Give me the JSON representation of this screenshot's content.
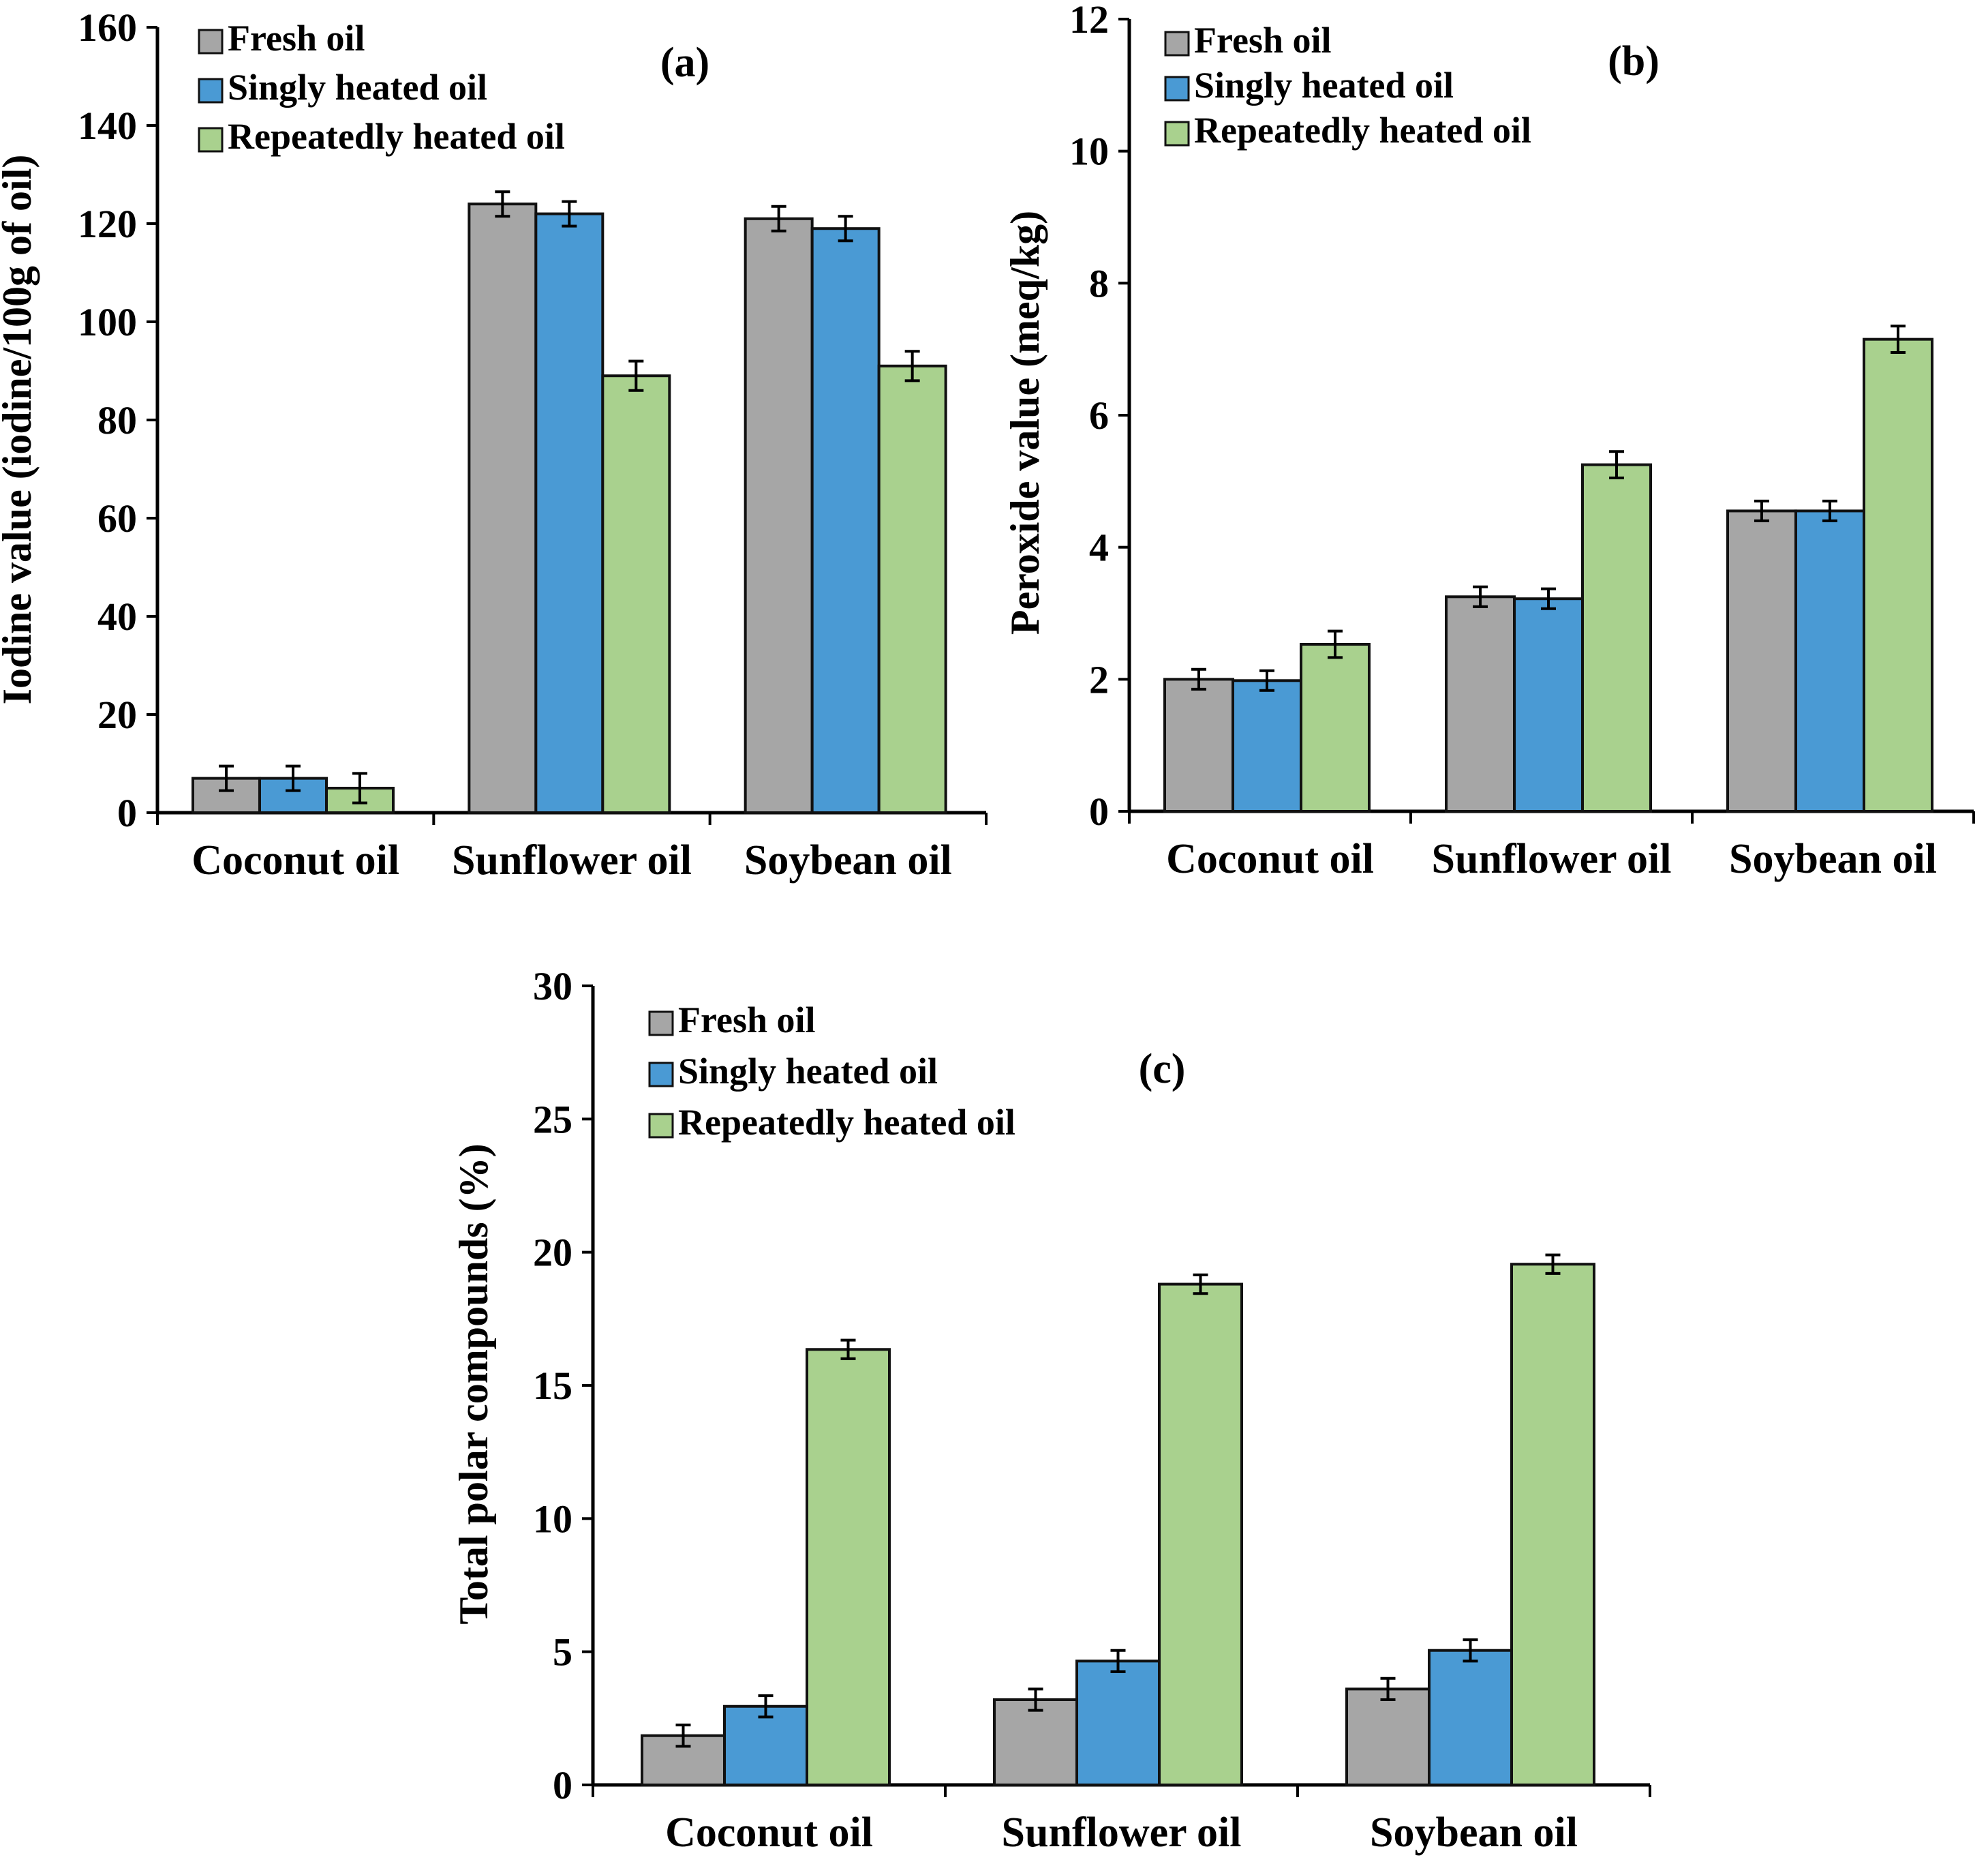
{
  "chart_data": [
    {
      "type": "bar",
      "panel_label": "(a)",
      "title": "",
      "xlabel": "",
      "ylabel": "Iodine value (iodine/100g of oil)",
      "ylim": [
        0,
        160
      ],
      "yticks": [
        0,
        20,
        40,
        60,
        80,
        100,
        120,
        140,
        160
      ],
      "grid": false,
      "legend_position": "top-left",
      "categories": [
        "Coconut oil",
        "Sunflower oil",
        "Soybean oil"
      ],
      "series": [
        {
          "name": "Fresh oil",
          "color": "#a6a6a6",
          "values": [
            7,
            124,
            121
          ],
          "errors": [
            2.5,
            2.5,
            2.5
          ]
        },
        {
          "name": "Singly heated oil",
          "color": "#4a9ad4",
          "values": [
            7,
            122,
            119
          ],
          "errors": [
            2.5,
            2.5,
            2.5
          ]
        },
        {
          "name": "Repeatedly heated oil",
          "color": "#a9d18e",
          "values": [
            5,
            89,
            91
          ],
          "errors": [
            3,
            3,
            3
          ]
        }
      ]
    },
    {
      "type": "bar",
      "panel_label": "(b)",
      "title": "",
      "xlabel": "",
      "ylabel": "Peroxide value (meq/kg)",
      "ylim": [
        0,
        12
      ],
      "yticks": [
        0,
        2,
        4,
        6,
        8,
        10,
        12
      ],
      "grid": false,
      "legend_position": "top-left",
      "categories": [
        "Coconut oil",
        "Sunflower oil",
        "Soybean oil"
      ],
      "series": [
        {
          "name": "Fresh oil",
          "color": "#a6a6a6",
          "values": [
            2.0,
            3.25,
            4.55
          ],
          "errors": [
            0.15,
            0.15,
            0.15
          ]
        },
        {
          "name": "Singly heated oil",
          "color": "#4a9ad4",
          "values": [
            1.98,
            3.22,
            4.55
          ],
          "errors": [
            0.15,
            0.15,
            0.15
          ]
        },
        {
          "name": "Repeatedly heated oil",
          "color": "#a9d18e",
          "values": [
            2.53,
            5.25,
            7.15
          ],
          "errors": [
            0.2,
            0.2,
            0.2
          ]
        }
      ]
    },
    {
      "type": "bar",
      "panel_label": "(c)",
      "title": "",
      "xlabel": "",
      "ylabel": "Total polar compounds (%)",
      "ylim": [
        0,
        30
      ],
      "yticks": [
        0,
        5,
        10,
        15,
        20,
        25,
        30
      ],
      "grid": false,
      "legend_position": "top-left",
      "categories": [
        "Coconut oil",
        "Sunflower oil",
        "Soybean oil"
      ],
      "series": [
        {
          "name": "Fresh oil",
          "color": "#a6a6a6",
          "values": [
            1.85,
            3.2,
            3.6
          ],
          "errors": [
            0.4,
            0.4,
            0.4
          ]
        },
        {
          "name": "Singly heated oil",
          "color": "#4a9ad4",
          "values": [
            2.95,
            4.65,
            5.05
          ],
          "errors": [
            0.4,
            0.4,
            0.4
          ]
        },
        {
          "name": "Repeatedly heated oil",
          "color": "#a9d18e",
          "values": [
            16.35,
            18.8,
            19.55
          ],
          "errors": [
            0.35,
            0.35,
            0.35
          ]
        }
      ]
    }
  ]
}
